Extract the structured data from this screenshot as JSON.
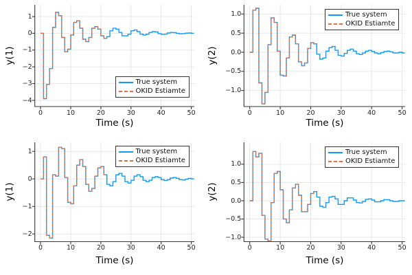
{
  "figure": {
    "background": "#ffffff",
    "colors": {
      "true_system": "#0f9cf7",
      "okid_estimate": "#e26f46",
      "grid": "#e4e4e4",
      "spine": "#36363b"
    }
  },
  "chart_data": [
    {
      "type": "line",
      "step": true,
      "position": "top-left",
      "xlabel": "Time (s)",
      "ylabel": "y(1)",
      "x_start": 0,
      "x_step": 1,
      "xlim": [
        -1.9,
        51.0
      ],
      "ylim": [
        -4.37,
        1.7
      ],
      "xticks": {
        "values": [
          0,
          10,
          20,
          30,
          40,
          50
        ],
        "labels": [
          "0",
          "10",
          "20",
          "30",
          "40",
          "50"
        ]
      },
      "yticks": {
        "values": [
          1,
          0,
          -1,
          -2,
          -3,
          -4
        ],
        "labels": [
          "1",
          "0",
          "−1",
          "−2",
          "−3",
          "−4"
        ]
      },
      "legend_position": "bottom-right",
      "series": [
        {
          "name": "True system",
          "color": "#0f9cf7",
          "style": "solid",
          "values": [
            0,
            -3.9,
            -3.05,
            -2.1,
            0.35,
            1.25,
            1.05,
            -0.25,
            -1.1,
            -0.95,
            -0.1,
            0.65,
            0.75,
            0.3,
            -0.35,
            -0.5,
            -0.25,
            0.3,
            0.4,
            0.25,
            -0.15,
            -0.3,
            -0.2,
            0.15,
            0.3,
            0.25,
            0.05,
            -0.15,
            -0.15,
            -0.05,
            0.15,
            0.2,
            0.1,
            -0.05,
            -0.1,
            -0.05,
            0.05,
            0.1,
            0.08,
            -0.02,
            -0.06,
            -0.05,
            0.02,
            0.05,
            0.04,
            0,
            -0.03,
            -0.02,
            0.01,
            0.02,
            0
          ]
        },
        {
          "name": "OKID Estiamte",
          "color": "#e26f46",
          "style": "dash",
          "values": [
            0,
            -3.9,
            -3.05,
            -2.1,
            0.35,
            1.25,
            1.05,
            -0.25,
            -1.1,
            -0.95,
            -0.1,
            0.65,
            0.75,
            0.3,
            -0.35,
            -0.5,
            -0.25,
            0.3,
            0.4,
            0.25,
            -0.15,
            -0.3
          ]
        }
      ]
    },
    {
      "type": "line",
      "step": true,
      "position": "top-right",
      "xlabel": "Time (s)",
      "ylabel": "y(2)",
      "x_start": 0,
      "x_step": 1,
      "xlim": [
        -1.9,
        51.0
      ],
      "ylim": [
        -1.42,
        1.24
      ],
      "xticks": {
        "values": [
          0,
          10,
          20,
          30,
          40,
          50
        ],
        "labels": [
          "0",
          "10",
          "20",
          "30",
          "40",
          "50"
        ]
      },
      "yticks": {
        "values": [
          1.0,
          0.5,
          0.0,
          -0.5,
          -1.0
        ],
        "labels": [
          "1.0",
          "0.5",
          "0.0",
          "−0.5",
          "−1.0"
        ]
      },
      "legend_position": "top-right",
      "series": [
        {
          "name": "True system",
          "color": "#0f9cf7",
          "style": "solid",
          "values": [
            0,
            1.1,
            1.15,
            -0.8,
            -1.35,
            -1.05,
            0.2,
            0.9,
            0.78,
            0.03,
            -0.6,
            -0.62,
            -0.15,
            0.4,
            0.45,
            0.22,
            -0.25,
            -0.35,
            -0.28,
            0.1,
            0.25,
            0.22,
            -0.05,
            -0.18,
            -0.15,
            0.03,
            0.12,
            0.15,
            0.05,
            -0.08,
            -0.1,
            -0.03,
            0.05,
            0.08,
            0.03,
            -0.04,
            -0.06,
            -0.02,
            0.03,
            0.05,
            0.02,
            -0.02,
            -0.04,
            -0.01,
            0.02,
            0.03,
            0.01,
            -0.02,
            -0.02,
            0,
            -0.02
          ]
        },
        {
          "name": "OKID Estiamte",
          "color": "#e26f46",
          "style": "dash",
          "values": [
            0,
            1.1,
            1.15,
            -0.8,
            -1.35,
            -1.05,
            0.2,
            0.9,
            0.78,
            0.03,
            -0.6,
            -0.62,
            -0.15,
            0.4,
            0.45,
            0.22,
            -0.25,
            -0.35,
            -0.28,
            0.1,
            0.25,
            0.22
          ]
        }
      ]
    },
    {
      "type": "line",
      "step": true,
      "position": "bottom-left",
      "xlabel": "Time (s)",
      "ylabel": "y(1)",
      "x_start": 0,
      "x_step": 1,
      "xlim": [
        -1.9,
        51.0
      ],
      "ylim": [
        -2.28,
        1.33
      ],
      "xticks": {
        "values": [
          0,
          10,
          20,
          30,
          40,
          50
        ],
        "labels": [
          "0",
          "10",
          "20",
          "30",
          "40",
          "50"
        ]
      },
      "yticks": {
        "values": [
          1,
          0,
          -1,
          -2
        ],
        "labels": [
          "1",
          "0",
          "−1",
          "−2"
        ]
      },
      "legend_position": "top-right",
      "series": [
        {
          "name": "True system",
          "color": "#0f9cf7",
          "style": "solid",
          "values": [
            0,
            0.8,
            -2.05,
            -2.15,
            0.15,
            0.1,
            1.15,
            1.1,
            0.05,
            -0.85,
            -0.9,
            -0.25,
            0.5,
            0.7,
            0.45,
            -0.2,
            -0.45,
            -0.35,
            0.1,
            0.4,
            0.45,
            0.15,
            -0.2,
            -0.25,
            -0.1,
            0.15,
            0.2,
            0.1,
            -0.1,
            -0.15,
            -0.05,
            0.1,
            0.15,
            0.08,
            -0.05,
            -0.1,
            -0.05,
            0.05,
            0.08,
            0.05,
            -0.03,
            -0.06,
            -0.03,
            0.03,
            0.05,
            0.02,
            -0.03,
            -0.04,
            -0.01,
            0.02,
            0
          ]
        },
        {
          "name": "OKID Estiamte",
          "color": "#e26f46",
          "style": "dash",
          "values": [
            0,
            0.8,
            -2.05,
            -2.15,
            0.15,
            0.1,
            1.15,
            1.1,
            0.05,
            -0.85,
            -0.9,
            -0.25,
            0.5,
            0.7,
            0.45,
            -0.2,
            -0.45,
            -0.35,
            0.1,
            0.4,
            0.45,
            0.15
          ]
        }
      ]
    },
    {
      "type": "line",
      "step": true,
      "position": "bottom-right",
      "xlabel": "Time (s)",
      "ylabel": "y(2)",
      "x_start": 0,
      "x_step": 1,
      "xlim": [
        -1.9,
        51.0
      ],
      "ylim": [
        -1.12,
        1.6
      ],
      "xticks": {
        "values": [
          0,
          10,
          20,
          30,
          40,
          50
        ],
        "labels": [
          "0",
          "10",
          "20",
          "30",
          "40",
          "50"
        ]
      },
      "yticks": {
        "values": [
          1.0,
          0.5,
          0.0,
          -0.5,
          -1.0
        ],
        "labels": [
          "1.0",
          "0.5",
          "0.0",
          "−0.5",
          "−1.0"
        ]
      },
      "legend_position": "top-right",
      "series": [
        {
          "name": "True system",
          "color": "#0f9cf7",
          "style": "solid",
          "values": [
            0,
            1.35,
            1.2,
            1.3,
            -0.4,
            -1.05,
            -1.1,
            -0.05,
            0.75,
            0.8,
            0.3,
            -0.5,
            -0.6,
            -0.25,
            0.35,
            0.45,
            0.15,
            -0.3,
            -0.3,
            -0.1,
            0.2,
            0.25,
            0.1,
            -0.15,
            -0.18,
            -0.05,
            0.1,
            0.12,
            0.05,
            -0.1,
            -0.1,
            0,
            0.08,
            0.08,
            0.02,
            -0.05,
            -0.06,
            -0.02,
            0.04,
            0.05,
            0.02,
            -0.03,
            -0.03,
            0,
            0.03,
            0.03,
            0,
            -0.02,
            -0.02,
            0,
            0
          ]
        },
        {
          "name": "OKID Estiamte",
          "color": "#e26f46",
          "style": "dash",
          "values": [
            0,
            1.35,
            1.2,
            1.3,
            -0.4,
            -1.05,
            -1.1,
            -0.05,
            0.75,
            0.8,
            0.3,
            -0.5,
            -0.6,
            -0.25,
            0.35,
            0.45,
            0.15,
            -0.3,
            -0.3,
            -0.1,
            0.2,
            0.25
          ]
        }
      ]
    }
  ]
}
